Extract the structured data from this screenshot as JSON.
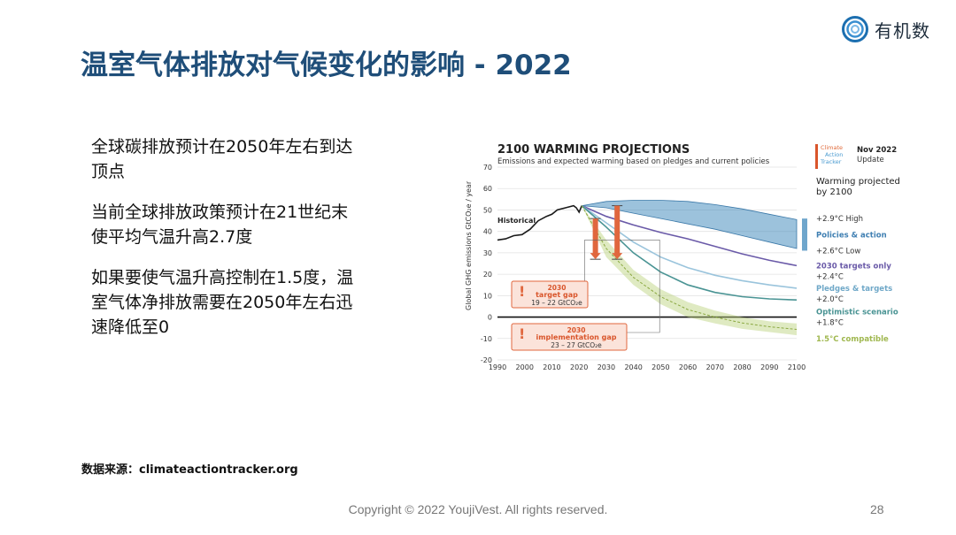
{
  "logo": {
    "text": "有机数",
    "icon": "rings-logo-icon",
    "color": "#1c6fb0"
  },
  "title": "温室气体排放对气候变化的影响 - 2022",
  "bullets": [
    "全球碳排放预计在2050年左右到达顶点",
    "当前全球排放政策预计在21世纪末使平均气温升高2.7度",
    "如果要使气温升高控制在1.5度，温室气体净排放需要在2050年左右迅速降低至0"
  ],
  "source": "数据来源：climateactiontracker.org",
  "footer": "Copyright © 2022 YoujiVest. All rights reserved.",
  "page_number": "28",
  "chart_data": {
    "type": "line",
    "title": "2100 WARMING PROJECTIONS",
    "subtitle": "Emissions and expected warming based on pledges and current policies",
    "ylabel": "Global GHG emissions  GtCO₂e / year",
    "xlabel": "",
    "xlim": [
      1990,
      2100
    ],
    "ylim": [
      -20,
      70
    ],
    "x_ticks": [
      1990,
      2000,
      2010,
      2020,
      2030,
      2040,
      2050,
      2060,
      2070,
      2080,
      2090,
      2100
    ],
    "y_ticks": [
      -20,
      -10,
      0,
      10,
      20,
      30,
      40,
      50,
      60,
      70
    ],
    "badge": {
      "org_line1": "Climate",
      "org_line2": "Action",
      "org_line3": "Tracker",
      "date": "Nov 2022",
      "update": "Update"
    },
    "right_header": [
      "Warming projected",
      "by 2100"
    ],
    "historical_label": "Historical",
    "series": [
      {
        "name": "Historical",
        "color": "#1a1a1a",
        "x": [
          1990,
          1993,
          1996,
          1999,
          2002,
          2005,
          2008,
          2010,
          2012,
          2015,
          2018,
          2019,
          2020,
          2021
        ],
        "y": [
          36,
          36.5,
          38,
          38.5,
          41,
          45,
          47,
          48,
          50,
          51,
          52,
          51,
          49,
          52
        ]
      },
      {
        "name": "Policies & action",
        "color": "#4a8fc0",
        "type": "band",
        "x": [
          2021,
          2030,
          2040,
          2050,
          2060,
          2070,
          2080,
          2090,
          2100
        ],
        "upper": [
          52,
          54,
          54.5,
          54.5,
          54,
          52.5,
          50.5,
          48,
          45.5
        ],
        "lower": [
          52,
          51,
          48.5,
          46,
          43.5,
          41,
          38,
          35,
          32
        ]
      },
      {
        "name": "2030 targets only",
        "color": "#6a5aa8",
        "x": [
          2021,
          2030,
          2040,
          2050,
          2060,
          2070,
          2080,
          2090,
          2100
        ],
        "y": [
          52,
          47,
          43,
          39.5,
          36.5,
          33,
          29.5,
          26.5,
          24
        ]
      },
      {
        "name": "Pledges & targets",
        "color": "#9ac4dc",
        "x": [
          2021,
          2030,
          2040,
          2050,
          2060,
          2070,
          2080,
          2090,
          2100
        ],
        "y": [
          52,
          44,
          35,
          28,
          23,
          19.5,
          17,
          15,
          13.5
        ]
      },
      {
        "name": "Optimistic scenario",
        "color": "#4a9494",
        "x": [
          2021,
          2030,
          2040,
          2050,
          2060,
          2070,
          2080,
          2090,
          2100
        ],
        "y": [
          52,
          42,
          30,
          21,
          15,
          11.5,
          9.5,
          8.5,
          8
        ]
      },
      {
        "name": "1.5°C compatible",
        "color": "#b8d078",
        "type": "band",
        "x": [
          2021,
          2030,
          2040,
          2050,
          2060,
          2070,
          2080,
          2090,
          2100
        ],
        "upper": [
          52,
          36,
          22,
          13,
          7,
          3,
          0,
          -2,
          -3
        ],
        "lower": [
          52,
          28,
          15,
          6,
          0,
          -3,
          -5.5,
          -7,
          -8.5
        ]
      }
    ],
    "right_labels": [
      {
        "text": "+2.9°C High",
        "y": 46,
        "color": "#333333"
      },
      {
        "text": "Policies & action",
        "y": 38.5,
        "color": "#3f7fb2",
        "bold": true
      },
      {
        "text": "+2.6°C Low",
        "y": 31,
        "color": "#333333"
      },
      {
        "text": "2030 targets only",
        "y": 24,
        "color": "#6a5aa8",
        "bold": true
      },
      {
        "text": "+2.4°C",
        "y": 19,
        "color": "#333333"
      },
      {
        "text": "Pledges & targets",
        "y": 13.5,
        "color": "#6fa8c8",
        "bold": true
      },
      {
        "text": "+2.0°C",
        "y": 8.5,
        "color": "#333333"
      },
      {
        "text": "Optimistic scenario",
        "y": 2.5,
        "color": "#4a9494",
        "bold": true
      },
      {
        "text": "+1.8°C",
        "y": -2.5,
        "color": "#333333"
      },
      {
        "text": "1.5°C compatible",
        "y": -10,
        "color": "#a0b850",
        "bold": true
      }
    ],
    "gaps": [
      {
        "year_line": "2030",
        "name": "target gap",
        "range": "19 – 22  GtCO₂e",
        "arrow_x": 2026,
        "from": 46,
        "to": 27
      },
      {
        "year_line": "2030",
        "name": "implementation gap",
        "range": "23 – 27  GtCO₂e",
        "arrow_x": 2034,
        "from": 52,
        "to": 27
      }
    ]
  }
}
